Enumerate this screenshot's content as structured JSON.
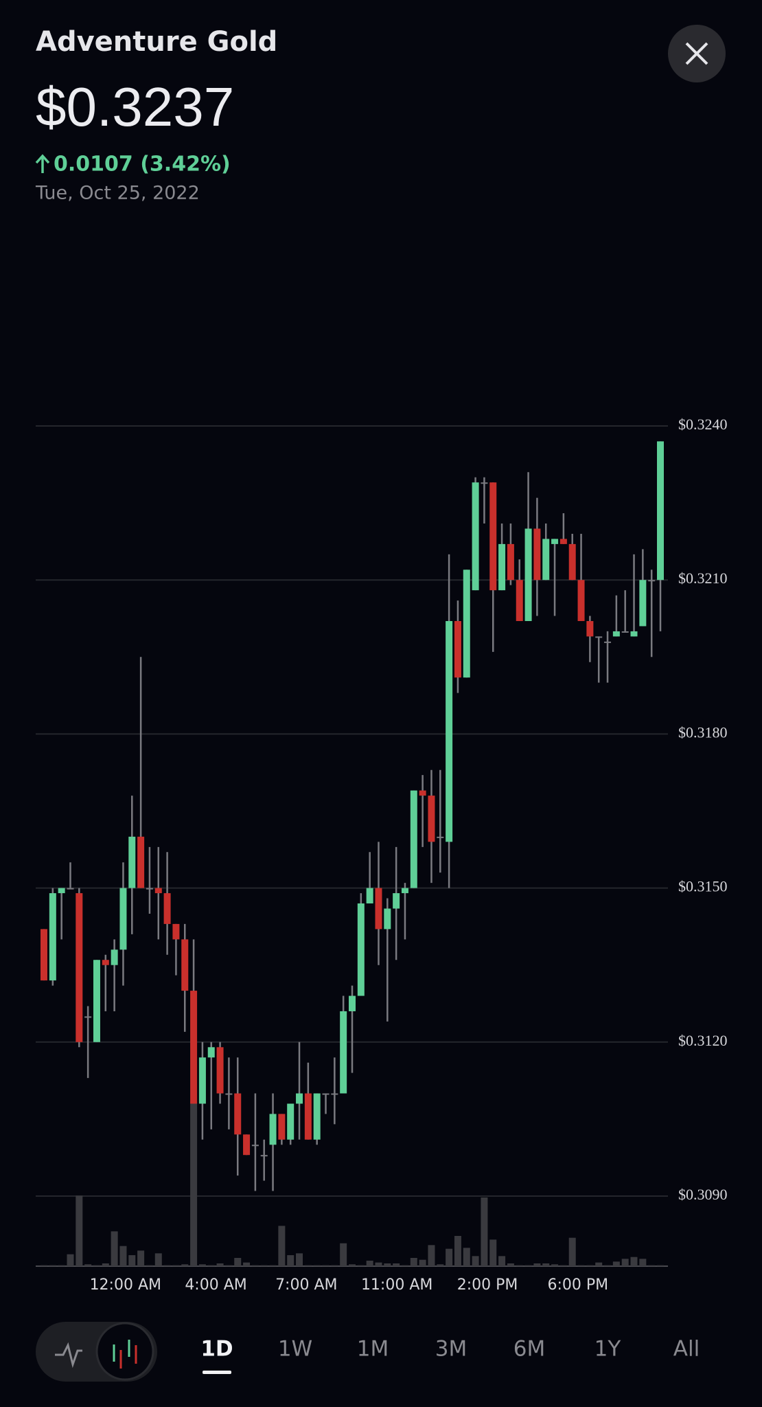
{
  "header": {
    "title": "Adventure Gold",
    "price": "$0.3237",
    "change": "0.0107 (3.42%)",
    "date": "Tue, Oct 25, 2022"
  },
  "chart_data": {
    "type": "candlestick",
    "up_color": "#5fcf97",
    "down_color": "#c9302c",
    "wick_color": "#7a7a80",
    "volume_color": "#3a3a3f",
    "grid": true,
    "ylim": [
      0.309,
      0.324
    ],
    "yticks": [
      {
        "value": 0.324,
        "label": "$0.3240"
      },
      {
        "value": 0.321,
        "label": "$0.3210"
      },
      {
        "value": 0.318,
        "label": "$0.3180"
      },
      {
        "value": 0.315,
        "label": "$0.3150"
      },
      {
        "value": 0.312,
        "label": "$0.3120"
      },
      {
        "value": 0.309,
        "label": "$0.3090"
      }
    ],
    "xlim": [
      0,
      70
    ],
    "xticks": [
      {
        "value": 9.26,
        "label": "12:00 AM"
      },
      {
        "value": 19.53,
        "label": "4:00 AM"
      },
      {
        "value": 29.8,
        "label": "7:00 AM"
      },
      {
        "value": 40.08,
        "label": "11:00 AM"
      },
      {
        "value": 50.36,
        "label": "2:00 PM"
      },
      {
        "value": 60.63,
        "label": "6:00 PM"
      }
    ],
    "open": [
      0.3142,
      0.3132,
      0.3149,
      0.315,
      0.3149,
      0.3125,
      0.312,
      0.3136,
      0.3135,
      0.3138,
      0.315,
      0.316,
      0.315,
      0.315,
      0.3149,
      0.3143,
      0.314,
      0.313,
      0.3108,
      0.3117,
      0.3119,
      0.311,
      0.311,
      0.3102,
      0.31,
      0.3098,
      0.31,
      0.3106,
      0.3101,
      0.3108,
      0.311,
      0.3101,
      0.311,
      0.311,
      0.311,
      0.3126,
      0.3129,
      0.3147,
      0.315,
      0.3142,
      0.3146,
      0.3149,
      0.315,
      0.3169,
      0.3168,
      0.316,
      0.3159,
      0.3202,
      0.3191,
      0.3208,
      0.3229,
      0.3229,
      0.3208,
      0.3217,
      0.321,
      0.3202,
      0.322,
      0.321,
      0.3217,
      0.3218,
      0.3217,
      0.321,
      0.3202,
      0.3199,
      0.3198,
      0.3199,
      0.32,
      0.3199,
      0.3201,
      0.321,
      0.321
    ],
    "high": [
      0.3142,
      0.315,
      0.315,
      0.3155,
      0.315,
      0.3127,
      0.3136,
      0.3137,
      0.314,
      0.3155,
      0.3168,
      0.3195,
      0.3158,
      0.3158,
      0.3157,
      0.3143,
      0.3143,
      0.314,
      0.312,
      0.312,
      0.312,
      0.3117,
      0.3117,
      0.3102,
      0.311,
      0.3101,
      0.311,
      0.3106,
      0.3108,
      0.312,
      0.3116,
      0.311,
      0.311,
      0.3117,
      0.3129,
      0.3131,
      0.3149,
      0.3157,
      0.3159,
      0.3148,
      0.3158,
      0.3151,
      0.3169,
      0.3172,
      0.3173,
      0.3173,
      0.3215,
      0.3206,
      0.3212,
      0.323,
      0.323,
      0.3229,
      0.3221,
      0.3221,
      0.3214,
      0.3231,
      0.3226,
      0.3221,
      0.3218,
      0.3223,
      0.3219,
      0.3219,
      0.3203,
      0.3199,
      0.32,
      0.3207,
      0.3208,
      0.3215,
      0.3216,
      0.3212,
      0.3237
    ],
    "low": [
      0.3132,
      0.3131,
      0.314,
      0.315,
      0.3119,
      0.3113,
      0.312,
      0.3126,
      0.3126,
      0.3131,
      0.3141,
      0.315,
      0.3145,
      0.314,
      0.3137,
      0.3133,
      0.3122,
      0.3108,
      0.3101,
      0.3103,
      0.3108,
      0.3103,
      0.3094,
      0.3098,
      0.3091,
      0.3093,
      0.3091,
      0.31,
      0.31,
      0.3101,
      0.3101,
      0.31,
      0.3106,
      0.3104,
      0.311,
      0.3114,
      0.3129,
      0.3147,
      0.3135,
      0.3124,
      0.3136,
      0.314,
      0.315,
      0.3158,
      0.3151,
      0.3153,
      0.315,
      0.3188,
      0.3191,
      0.3208,
      0.3221,
      0.3196,
      0.3208,
      0.3209,
      0.3202,
      0.3202,
      0.3203,
      0.321,
      0.3203,
      0.3217,
      0.321,
      0.3202,
      0.3194,
      0.319,
      0.319,
      0.3199,
      0.32,
      0.3199,
      0.3201,
      0.3195,
      0.32
    ],
    "close": [
      0.3132,
      0.3149,
      0.315,
      0.315,
      0.312,
      0.3125,
      0.3136,
      0.3135,
      0.3138,
      0.315,
      0.316,
      0.315,
      0.315,
      0.3149,
      0.3143,
      0.314,
      0.313,
      0.3108,
      0.3117,
      0.3119,
      0.311,
      0.311,
      0.3102,
      0.3098,
      0.31,
      0.3098,
      0.3106,
      0.3101,
      0.3108,
      0.311,
      0.3101,
      0.311,
      0.311,
      0.311,
      0.3126,
      0.3129,
      0.3147,
      0.315,
      0.3142,
      0.3146,
      0.3149,
      0.315,
      0.3169,
      0.3168,
      0.3159,
      0.316,
      0.3202,
      0.3191,
      0.3212,
      0.3229,
      0.3229,
      0.3208,
      0.3217,
      0.321,
      0.3202,
      0.322,
      0.321,
      0.3218,
      0.3218,
      0.3217,
      0.321,
      0.3202,
      0.3199,
      0.3199,
      0.3198,
      0.32,
      0.32,
      0.32,
      0.321,
      0.321,
      0.3237
    ],
    "volume": [
      1,
      1,
      1,
      13,
      77,
      2,
      1,
      3,
      38,
      22,
      12,
      17,
      1,
      14,
      1,
      1,
      2,
      180,
      2,
      1,
      3,
      1,
      9,
      4,
      1,
      1,
      1,
      44,
      12,
      14,
      1,
      1,
      1,
      1,
      25,
      2,
      1,
      6,
      4,
      3,
      3,
      1,
      9,
      7,
      23,
      2,
      19,
      33,
      20,
      11,
      75,
      29,
      11,
      3,
      1,
      1,
      3,
      3,
      2,
      1,
      31,
      1,
      1,
      4,
      1,
      5,
      8,
      10,
      8,
      1,
      1
    ]
  },
  "tabs": [
    "1D",
    "1W",
    "1M",
    "3M",
    "6M",
    "1Y",
    "All"
  ],
  "selected_tab": 0
}
